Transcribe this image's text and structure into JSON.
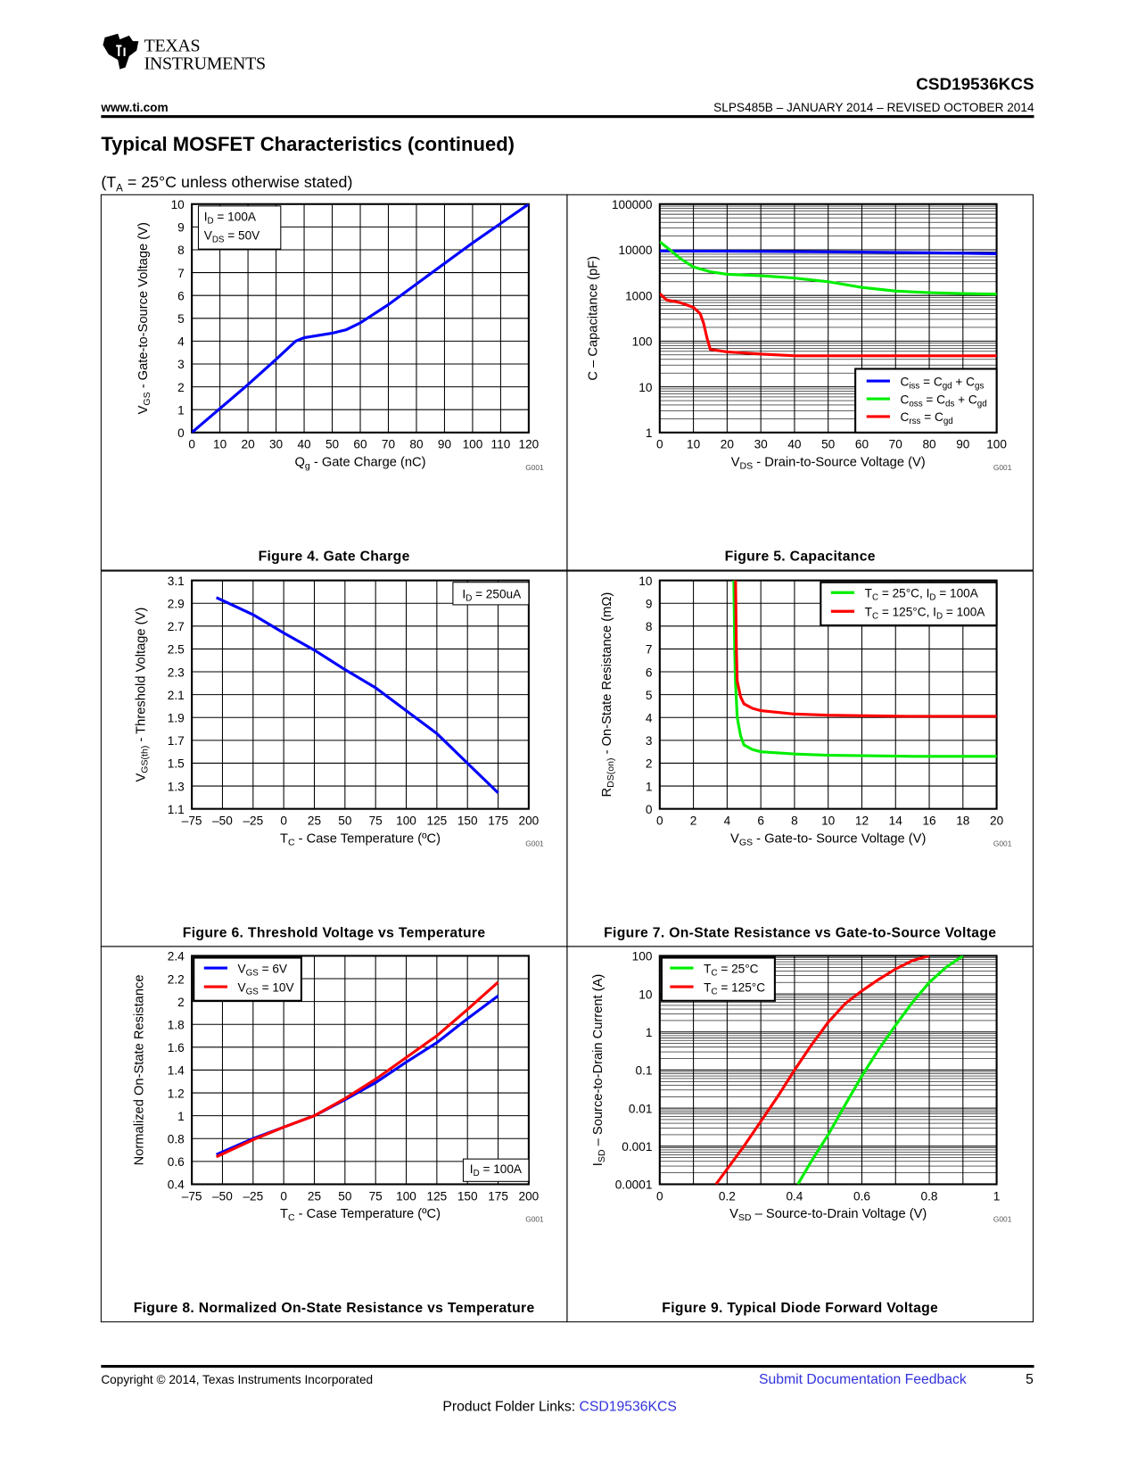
{
  "header": {
    "logo_line1": "Texas",
    "logo_line2": "Instruments",
    "part_number": "CSD19536KCS",
    "website": "www.ti.com",
    "doc_number": "SLPS485B – JANUARY 2014 – REVISED OCTOBER 2014"
  },
  "section_title": "Typical MOSFET Characteristics (continued)",
  "conditions": {
    "pre": "(T",
    "sub": "A",
    "post": " = 25°C unless otherwise stated)"
  },
  "footer": {
    "copyright": "Copyright © 2014, Texas Instruments Incorporated",
    "feedback_link": "Submit Documentation Feedback",
    "page_number": "5",
    "folder_label": "Product Folder Links: ",
    "folder_link": "CSD19536KCS"
  },
  "chart_data": [
    {
      "id": "fig4",
      "type": "line",
      "caption": "Figure 4. Gate Charge",
      "code": "G001",
      "xscale": "linear",
      "yscale": "linear",
      "xlim": [
        0,
        120
      ],
      "ylim": [
        0,
        10
      ],
      "grid": true,
      "xticks": [
        0,
        10,
        20,
        30,
        40,
        50,
        60,
        70,
        80,
        90,
        100,
        110,
        120
      ],
      "xtick_labels": [
        "0",
        "10",
        "20",
        "30",
        "40",
        "50",
        "60",
        "70",
        "80",
        "90",
        "100",
        "110",
        "120"
      ],
      "yticks": [
        0,
        1,
        2,
        3,
        4,
        5,
        6,
        7,
        8,
        9,
        10
      ],
      "ytick_labels": [
        "0",
        "1",
        "2",
        "3",
        "4",
        "5",
        "6",
        "7",
        "8",
        "9",
        "10"
      ],
      "xlabel": [
        [
          "Q",
          ""
        ],
        [
          "g",
          "sub"
        ],
        [
          " - Gate Charge  (nC)",
          ""
        ]
      ],
      "ylabel": [
        [
          "V",
          ""
        ],
        [
          "GS",
          "sub"
        ],
        [
          " - Gate-to-Source Voltage (V)",
          ""
        ]
      ],
      "annotation": [
        [
          [
            "I",
            ""
          ],
          [
            "D",
            "sub"
          ],
          [
            " = 100A",
            ""
          ]
        ],
        [
          [
            "V",
            ""
          ],
          [
            "DS",
            "sub"
          ],
          [
            " = 50V",
            ""
          ]
        ]
      ],
      "annotation_placement": "top-left",
      "series": [
        {
          "name": [
            [
              "V",
              ""
            ],
            [
              "GS",
              "sub"
            ]
          ],
          "color": "#0000ff",
          "x": [
            0,
            10,
            20,
            30,
            37,
            40,
            50,
            55,
            60,
            70,
            80,
            90,
            100,
            110,
            120
          ],
          "y": [
            0,
            1.05,
            2.1,
            3.2,
            4.0,
            4.15,
            4.35,
            4.5,
            4.8,
            5.6,
            6.5,
            7.4,
            8.3,
            9.15,
            10
          ]
        }
      ]
    },
    {
      "id": "fig5",
      "type": "line",
      "caption": "Figure 5. Capacitance",
      "code": "G001",
      "xscale": "linear",
      "yscale": "log",
      "xlim": [
        0,
        100
      ],
      "ylim": [
        1,
        100000
      ],
      "grid": true,
      "xticks": [
        0,
        10,
        20,
        30,
        40,
        50,
        60,
        70,
        80,
        90,
        100
      ],
      "xtick_labels": [
        "0",
        "10",
        "20",
        "30",
        "40",
        "50",
        "60",
        "70",
        "80",
        "90",
        "100"
      ],
      "yticks": [
        1,
        10,
        100,
        1000,
        10000,
        100000
      ],
      "ytick_labels": [
        "1",
        "10",
        "100",
        "1000",
        "10000",
        "100000"
      ],
      "xlabel": [
        [
          "V",
          ""
        ],
        [
          "DS",
          "sub"
        ],
        [
          " - Drain-to-Source Voltage (V)",
          ""
        ]
      ],
      "ylabel": [
        [
          "C – Capacitance  (pF)",
          ""
        ]
      ],
      "legend_placement": "bottom-right",
      "series": [
        {
          "name": [
            [
              "C",
              ""
            ],
            [
              "iss",
              "sub"
            ],
            [
              " = C",
              ""
            ],
            [
              "gd",
              "sub"
            ],
            [
              " + C",
              ""
            ],
            [
              "gs",
              "sub"
            ]
          ],
          "color": "#0000ff",
          "x": [
            0,
            20,
            50,
            80,
            100
          ],
          "y": [
            9400,
            9300,
            9000,
            8600,
            8200
          ]
        },
        {
          "name": [
            [
              "C",
              ""
            ],
            [
              "oss",
              "sub"
            ],
            [
              " = C",
              ""
            ],
            [
              "ds",
              "sub"
            ],
            [
              " + C",
              ""
            ],
            [
              "gd",
              "sub"
            ]
          ],
          "color": "#00ee00",
          "x": [
            0,
            3,
            6,
            10,
            15,
            20,
            30,
            40,
            50,
            60,
            70,
            80,
            90,
            100
          ],
          "y": [
            15000,
            10000,
            6500,
            4200,
            3300,
            2900,
            2700,
            2400,
            2000,
            1500,
            1250,
            1150,
            1100,
            1070
          ]
        },
        {
          "name": [
            [
              "C",
              ""
            ],
            [
              "rss",
              "sub"
            ],
            [
              " =  C",
              ""
            ],
            [
              "gd",
              "sub"
            ]
          ],
          "color": "#ff0000",
          "x": [
            0,
            2,
            6,
            10,
            12,
            13,
            14,
            15,
            20,
            30,
            40,
            60,
            100
          ],
          "y": [
            1100,
            800,
            700,
            550,
            400,
            250,
            120,
            66,
            58,
            52,
            48,
            48,
            48
          ]
        }
      ]
    },
    {
      "id": "fig6",
      "type": "line",
      "caption": "Figure 6. Threshold Voltage vs Temperature",
      "code": "G001",
      "xscale": "linear",
      "yscale": "linear",
      "xlim": [
        -75,
        200
      ],
      "ylim": [
        1.1,
        3.1
      ],
      "grid": true,
      "xticks": [
        -75,
        -50,
        -25,
        0,
        25,
        50,
        75,
        100,
        125,
        150,
        175,
        200
      ],
      "xtick_labels": [
        "–75",
        "–50",
        "–25",
        "0",
        "25",
        "50",
        "75",
        "100",
        "125",
        "150",
        "175",
        "200"
      ],
      "yticks": [
        1.1,
        1.3,
        1.5,
        1.7,
        1.9,
        2.1,
        2.3,
        2.5,
        2.7,
        2.9,
        3.1
      ],
      "ytick_labels": [
        "1.1",
        "1.3",
        "1.5",
        "1.7",
        "1.9",
        "2.1",
        "2.3",
        "2.5",
        "2.7",
        "2.9",
        "3.1"
      ],
      "xlabel": [
        [
          "T",
          ""
        ],
        [
          "C",
          "sub"
        ],
        [
          " - Case Temperature (ºC)",
          ""
        ]
      ],
      "ylabel": [
        [
          "V",
          ""
        ],
        [
          "GS(th)",
          "sub"
        ],
        [
          " - Threshold Voltage (V)",
          ""
        ]
      ],
      "annotation": [
        [
          [
            "I",
            ""
          ],
          [
            "D",
            "sub"
          ],
          [
            " = 250uA",
            ""
          ]
        ]
      ],
      "annotation_placement": "top-right",
      "series": [
        {
          "name": [
            [
              "V",
              ""
            ],
            [
              "GS(th)",
              "sub"
            ]
          ],
          "color": "#0000ff",
          "x": [
            -55,
            -25,
            0,
            25,
            50,
            75,
            100,
            125,
            150,
            175
          ],
          "y": [
            2.95,
            2.8,
            2.64,
            2.49,
            2.32,
            2.16,
            1.96,
            1.76,
            1.5,
            1.24
          ]
        }
      ]
    },
    {
      "id": "fig7",
      "type": "line",
      "caption": "Figure 7. On-State Resistance vs Gate-to-Source Voltage",
      "code": "G001",
      "xscale": "linear",
      "yscale": "linear",
      "xlim": [
        0,
        20
      ],
      "ylim": [
        0,
        10
      ],
      "grid": true,
      "xticks": [
        0,
        2,
        4,
        6,
        8,
        10,
        12,
        14,
        16,
        18,
        20
      ],
      "xtick_labels": [
        "0",
        "2",
        "4",
        "6",
        "8",
        "10",
        "12",
        "14",
        "16",
        "18",
        "20"
      ],
      "yticks": [
        0,
        1,
        2,
        3,
        4,
        5,
        6,
        7,
        8,
        9,
        10
      ],
      "ytick_labels": [
        "0",
        "1",
        "2",
        "3",
        "4",
        "5",
        "6",
        "7",
        "8",
        "9",
        "10"
      ],
      "xlabel": [
        [
          "V",
          ""
        ],
        [
          "GS",
          "sub"
        ],
        [
          " - Gate-to- Source Voltage (V)",
          ""
        ]
      ],
      "ylabel": [
        [
          "R",
          ""
        ],
        [
          "DS(on)",
          "sub"
        ],
        [
          " - On-State Resistance  (mΩ)",
          ""
        ]
      ],
      "legend_placement": "top-right",
      "series": [
        {
          "name": [
            [
              "T",
              ""
            ],
            [
              "C",
              "sub"
            ],
            [
              " = 25°C, I",
              ""
            ],
            [
              "D",
              "sub"
            ],
            [
              " = 100A",
              ""
            ]
          ],
          "color": "#00ee00",
          "x": [
            4.4,
            4.45,
            4.5,
            4.6,
            4.8,
            5.0,
            5.5,
            6,
            8,
            10,
            15,
            20
          ],
          "y": [
            10,
            7,
            5.5,
            4.0,
            3.2,
            2.8,
            2.6,
            2.5,
            2.4,
            2.35,
            2.3,
            2.3
          ]
        },
        {
          "name": [
            [
              "T",
              ""
            ],
            [
              "C",
              "sub"
            ],
            [
              " = 125°C, I",
              ""
            ],
            [
              "D",
              "sub"
            ],
            [
              " = 100A",
              ""
            ]
          ],
          "color": "#ff0000",
          "x": [
            4.5,
            4.55,
            4.6,
            4.8,
            5.0,
            5.5,
            6,
            8,
            10,
            15,
            20
          ],
          "y": [
            10,
            7,
            5.6,
            4.9,
            4.6,
            4.4,
            4.3,
            4.15,
            4.1,
            4.05,
            4.05
          ]
        }
      ]
    },
    {
      "id": "fig8",
      "type": "line",
      "caption": "Figure 8. Normalized On-State Resistance vs Temperature",
      "code": "G001",
      "xscale": "linear",
      "yscale": "linear",
      "xlim": [
        -75,
        200
      ],
      "ylim": [
        0.4,
        2.4
      ],
      "grid": true,
      "xticks": [
        -75,
        -50,
        -25,
        0,
        25,
        50,
        75,
        100,
        125,
        150,
        175,
        200
      ],
      "xtick_labels": [
        "–75",
        "–50",
        "–25",
        "0",
        "25",
        "50",
        "75",
        "100",
        "125",
        "150",
        "175",
        "200"
      ],
      "yticks": [
        0.4,
        0.6,
        0.8,
        1,
        1.2,
        1.4,
        1.6,
        1.8,
        2,
        2.2,
        2.4
      ],
      "ytick_labels": [
        "0.4",
        "0.6",
        "0.8",
        "1",
        "1.2",
        "1.4",
        "1.6",
        "1.8",
        "2",
        "2.2",
        "2.4"
      ],
      "xlabel": [
        [
          "T",
          ""
        ],
        [
          "C",
          "sub"
        ],
        [
          " - Case Temperature (ºC)",
          ""
        ]
      ],
      "ylabel": [
        [
          "Normalized On-State Resistance",
          ""
        ]
      ],
      "annotation": [
        [
          [
            "I",
            ""
          ],
          [
            "D",
            "sub"
          ],
          [
            " = 100A",
            ""
          ]
        ]
      ],
      "annotation_placement": "bottom-right",
      "legend_placement": "top-left",
      "series": [
        {
          "name": [
            [
              "V",
              ""
            ],
            [
              "GS",
              "sub"
            ],
            [
              " = 6V",
              ""
            ]
          ],
          "color": "#0000ff",
          "x": [
            -55,
            -25,
            0,
            25,
            50,
            75,
            100,
            125,
            150,
            175
          ],
          "y": [
            0.66,
            0.8,
            0.9,
            1.0,
            1.14,
            1.29,
            1.47,
            1.64,
            1.85,
            2.05
          ]
        },
        {
          "name": [
            [
              "V",
              ""
            ],
            [
              "GS",
              "sub"
            ],
            [
              " = 10V",
              ""
            ]
          ],
          "color": "#ff0000",
          "x": [
            -55,
            -25,
            0,
            25,
            50,
            75,
            100,
            125,
            150,
            175
          ],
          "y": [
            0.64,
            0.79,
            0.9,
            1.0,
            1.15,
            1.32,
            1.51,
            1.7,
            1.93,
            2.17
          ]
        }
      ]
    },
    {
      "id": "fig9",
      "type": "line",
      "caption": "Figure 9. Typical Diode Forward Voltage",
      "code": "G001",
      "xscale": "linear",
      "yscale": "log",
      "xlim": [
        0,
        1
      ],
      "ylim": [
        0.0001,
        100
      ],
      "grid": true,
      "xticks": [
        0,
        0.2,
        0.4,
        0.6,
        0.8,
        1
      ],
      "xtick_labels": [
        "0",
        "0.2",
        "0.4",
        "0.6",
        "0.8",
        "1"
      ],
      "xgrid": [
        0,
        0.1,
        0.2,
        0.3,
        0.4,
        0.5,
        0.6,
        0.7,
        0.8,
        0.9,
        1
      ],
      "yticks": [
        0.0001,
        0.001,
        0.01,
        0.1,
        1,
        10,
        100
      ],
      "ytick_labels": [
        "0.0001",
        "0.001",
        "0.01",
        "0.1",
        "1",
        "10",
        "100"
      ],
      "xlabel": [
        [
          "V",
          ""
        ],
        [
          "SD",
          "sub"
        ],
        [
          " – Source-to-Drain Voltage (V)",
          ""
        ]
      ],
      "ylabel": [
        [
          "I",
          ""
        ],
        [
          "SD",
          "sub"
        ],
        [
          " – Source-to-Drain Current (A)",
          ""
        ]
      ],
      "legend_placement": "top-left",
      "series": [
        {
          "name": [
            [
              "T",
              ""
            ],
            [
              "C",
              "sub"
            ],
            [
              " = 25°C",
              ""
            ]
          ],
          "color": "#00ee00",
          "x": [
            0.41,
            0.45,
            0.5,
            0.55,
            0.6,
            0.65,
            0.7,
            0.75,
            0.8,
            0.85,
            0.9
          ],
          "y": [
            0.0001,
            0.0004,
            0.002,
            0.012,
            0.07,
            0.35,
            1.5,
            6,
            20,
            50,
            100
          ]
        },
        {
          "name": [
            [
              "T",
              ""
            ],
            [
              "C",
              "sub"
            ],
            [
              " = 125°C",
              ""
            ]
          ],
          "color": "#ff0000",
          "x": [
            0.167,
            0.2,
            0.25,
            0.3,
            0.35,
            0.4,
            0.45,
            0.5,
            0.55,
            0.6,
            0.65,
            0.7,
            0.75,
            0.8
          ],
          "y": [
            0.0001,
            0.00025,
            0.001,
            0.0045,
            0.02,
            0.1,
            0.45,
            1.8,
            5.5,
            12,
            24,
            45,
            75,
            100
          ]
        }
      ]
    }
  ]
}
